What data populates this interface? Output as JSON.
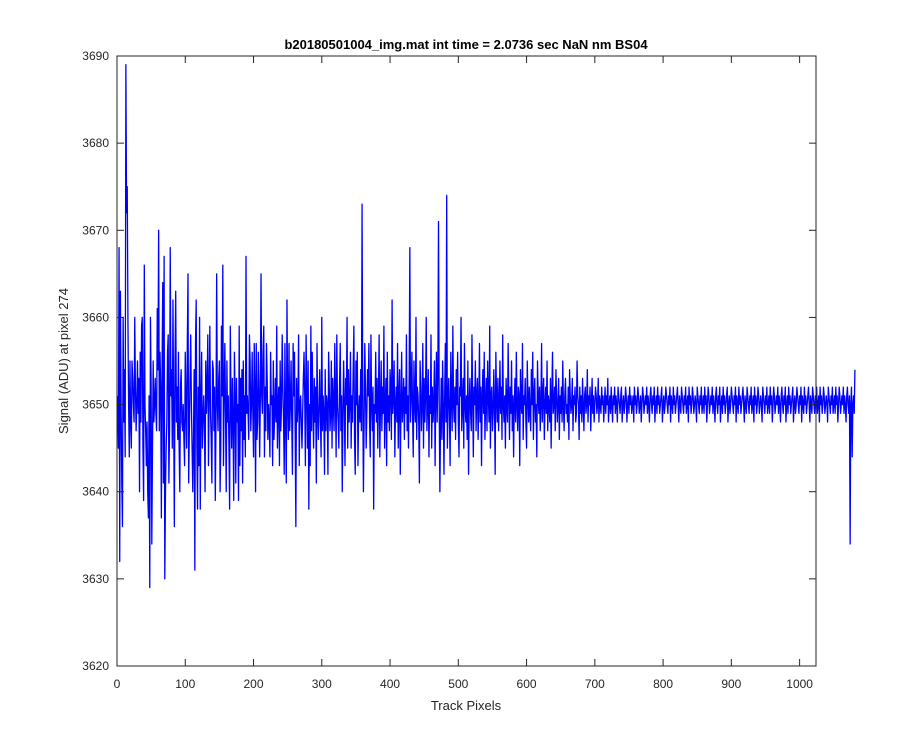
{
  "chart_data": {
    "type": "line",
    "title": "b20180501004_img.mat int time = 2.0736 sec  NaN nm BS04",
    "xlabel": "Track Pixels",
    "ylabel": "Signal (ADU) at pixel 274",
    "xlim": [
      0,
      1024
    ],
    "ylim": [
      3620,
      3690
    ],
    "x_ticks": [
      0,
      100,
      200,
      300,
      400,
      500,
      600,
      700,
      800,
      900,
      1000
    ],
    "y_ticks": [
      3620,
      3630,
      3640,
      3650,
      3660,
      3670,
      3680,
      3690
    ],
    "grid": false,
    "legend": "none",
    "series": [
      {
        "color": "#0000ff",
        "x_start": 1,
        "x_step": 1,
        "values": [
          3651,
          3645,
          3668,
          3632,
          3663,
          3650,
          3641,
          3636,
          3660,
          3648,
          3654,
          3644,
          3689,
          3672,
          3675,
          3660,
          3650,
          3644,
          3655,
          3648,
          3645,
          3655,
          3653,
          3650,
          3648,
          3660,
          3652,
          3647,
          3650,
          3655,
          3649,
          3653,
          3640,
          3656,
          3648,
          3659,
          3660,
          3645,
          3639,
          3666,
          3650,
          3647,
          3643,
          3648,
          3640,
          3637,
          3651,
          3629,
          3660,
          3652,
          3634,
          3645,
          3655,
          3648,
          3650,
          3653,
          3649,
          3647,
          3661,
          3654,
          3670,
          3647,
          3656,
          3652,
          3637,
          3654,
          3664,
          3641,
          3667,
          3630,
          3640,
          3645,
          3648,
          3656,
          3658,
          3641,
          3647,
          3668,
          3651,
          3654,
          3645,
          3662,
          3649,
          3636,
          3655,
          3663,
          3648,
          3652,
          3646,
          3656,
          3645,
          3640,
          3652,
          3654,
          3648,
          3647,
          3650,
          3646,
          3643,
          3656,
          3650,
          3645,
          3657,
          3665,
          3641,
          3647,
          3653,
          3658,
          3650,
          3645,
          3640,
          3646,
          3654,
          3631,
          3657,
          3662,
          3645,
          3638,
          3652,
          3643,
          3660,
          3638,
          3650,
          3656,
          3645,
          3648,
          3651,
          3648,
          3640,
          3655,
          3649,
          3652,
          3658,
          3643,
          3651,
          3659,
          3649,
          3646,
          3641,
          3655,
          3654,
          3647,
          3652,
          3639,
          3648,
          3665,
          3650,
          3647,
          3653,
          3655,
          3640,
          3645,
          3659,
          3651,
          3666,
          3643,
          3651,
          3657,
          3649,
          3640,
          3655,
          3648,
          3651,
          3645,
          3638,
          3659,
          3650,
          3645,
          3653,
          3648,
          3639,
          3656,
          3651,
          3641,
          3653,
          3648,
          3650,
          3639,
          3659,
          3643,
          3653,
          3647,
          3654,
          3641,
          3655,
          3646,
          3651,
          3644,
          3667,
          3649,
          3651,
          3649,
          3646,
          3658,
          3655,
          3647,
          3650,
          3656,
          3649,
          3644,
          3657,
          3652,
          3640,
          3657,
          3646,
          3648,
          3656,
          3652,
          3644,
          3651,
          3665,
          3651,
          3649,
          3656,
          3659,
          3644,
          3652,
          3647,
          3657,
          3653,
          3646,
          3650,
          3648,
          3644,
          3656,
          3650,
          3651,
          3643,
          3655,
          3646,
          3649,
          3653,
          3648,
          3659,
          3645,
          3650,
          3652,
          3643,
          3655,
          3647,
          3650,
          3658,
          3652,
          3648,
          3642,
          3657,
          3648,
          3641,
          3662,
          3650,
          3646,
          3657,
          3647,
          3650,
          3655,
          3648,
          3642,
          3657,
          3651,
          3656,
          3647,
          3636,
          3653,
          3648,
          3650,
          3658,
          3643,
          3650,
          3651,
          3648,
          3645,
          3649,
          3653,
          3656,
          3651,
          3643,
          3658,
          3652,
          3645,
          3655,
          3638,
          3650,
          3643,
          3659,
          3647,
          3656,
          3650,
          3645,
          3653,
          3648,
          3652,
          3641,
          3657,
          3649,
          3646,
          3650,
          3654,
          3648,
          3644,
          3660,
          3647,
          3651,
          3649,
          3642,
          3654,
          3647,
          3651,
          3650,
          3642,
          3656,
          3652,
          3647,
          3649,
          3655,
          3645,
          3653,
          3650,
          3647,
          3657,
          3651,
          3644,
          3658,
          3650,
          3648,
          3645,
          3652,
          3657,
          3647,
          3651,
          3640,
          3649,
          3655,
          3650,
          3643,
          3653,
          3650,
          3660,
          3645,
          3654,
          3648,
          3650,
          3656,
          3645,
          3651,
          3648,
          3654,
          3659,
          3646,
          3642,
          3655,
          3650,
          3656,
          3643,
          3649,
          3651,
          3648,
          3654,
          3647,
          3673,
          3651,
          3640,
          3648,
          3657,
          3652,
          3645,
          3649,
          3654,
          3651,
          3657,
          3648,
          3644,
          3658,
          3650,
          3647,
          3652,
          3638,
          3650,
          3649,
          3656,
          3648,
          3653,
          3645,
          3651,
          3658,
          3644,
          3650,
          3655,
          3647,
          3652,
          3649,
          3659,
          3645,
          3650,
          3653,
          3643,
          3656,
          3648,
          3651,
          3647,
          3654,
          3652,
          3646,
          3662,
          3649,
          3651,
          3655,
          3644,
          3650,
          3652,
          3648,
          3657,
          3645,
          3651,
          3654,
          3642,
          3650,
          3656,
          3648,
          3650,
          3653,
          3646,
          3652,
          3649,
          3658,
          3647,
          3651,
          3645,
          3653,
          3668,
          3648,
          3651,
          3656,
          3649,
          3644,
          3655,
          3650,
          3648,
          3660,
          3646,
          3652,
          3651,
          3648,
          3641,
          3655,
          3652,
          3647,
          3650,
          3657,
          3645,
          3653,
          3648,
          3651,
          3660,
          3647,
          3650,
          3654,
          3644,
          3651,
          3649,
          3658,
          3645,
          3652,
          3648,
          3650,
          3655,
          3643,
          3651,
          3656,
          3648,
          3653,
          3671,
          3650,
          3640,
          3648,
          3653,
          3646,
          3655,
          3650,
          3642,
          3651,
          3657,
          3648,
          3674,
          3645,
          3650,
          3653,
          3649,
          3643,
          3656,
          3651,
          3647,
          3659,
          3650,
          3648,
          3652,
          3646,
          3654,
          3650,
          3656,
          3648,
          3644,
          3652,
          3651,
          3660,
          3647,
          3650,
          3653,
          3645,
          3657,
          3650,
          3648,
          3651,
          3646,
          3655,
          3642,
          3650,
          3653,
          3649,
          3647,
          3658,
          3651,
          3644,
          3652,
          3650,
          3655,
          3647,
          3651,
          3653,
          3646,
          3650,
          3657,
          3648,
          3652,
          3643,
          3651,
          3654,
          3649,
          3656,
          3646,
          3650,
          3653,
          3647,
          3655,
          3651,
          3648,
          3659,
          3645,
          3651,
          3652,
          3647,
          3649,
          3654,
          3650,
          3642,
          3656,
          3651,
          3648,
          3653,
          3647,
          3650,
          3655,
          3649,
          3652,
          3646,
          3658,
          3650,
          3648,
          3651,
          3645,
          3653,
          3650,
          3648,
          3657,
          3651,
          3646,
          3652,
          3649,
          3655,
          3647,
          3651,
          3644,
          3650,
          3653,
          3648,
          3656,
          3650,
          3647,
          3652,
          3651,
          3643,
          3654,
          3650,
          3649,
          3657,
          3646,
          3651,
          3650,
          3653,
          3648,
          3645,
          3655,
          3651,
          3648,
          3652,
          3649,
          3647,
          3654,
          3650,
          3656,
          3646,
          3651,
          3653,
          3648,
          3650,
          3644,
          3655,
          3651,
          3649,
          3652,
          3647,
          3650,
          3657,
          3648,
          3651,
          3653,
          3646,
          3650,
          3652,
          3649,
          3655,
          3647,
          3651,
          3650,
          3648,
          3653,
          3645,
          3651,
          3656,
          3649,
          3650,
          3652,
          3647,
          3654,
          3651,
          3648,
          3650,
          3653,
          3646,
          3651,
          3649,
          3652,
          3648,
          3655,
          3650,
          3647,
          3651,
          3653,
          3649,
          3650,
          3648,
          3652,
          3646,
          3654,
          3651,
          3649,
          3650,
          3653,
          3647,
          3651,
          3650,
          3652,
          3648,
          3649,
          3655,
          3651,
          3650,
          3646,
          3652,
          3649,
          3651,
          3648,
          3653,
          3650,
          3647,
          3651,
          3652,
          3649,
          3650,
          3654,
          3648,
          3651,
          3650,
          3652,
          3647,
          3650,
          3653,
          3649,
          3651,
          3648,
          3650,
          3652,
          3651,
          3649,
          3650,
          3653,
          3648,
          3651,
          3650,
          3649,
          3652,
          3650,
          3651,
          3648,
          3650,
          3652,
          3649,
          3651,
          3650,
          3653,
          3648,
          3650,
          3651,
          3649,
          3652,
          3650,
          3648,
          3651,
          3650,
          3652,
          3649,
          3651,
          3650,
          3648,
          3652,
          3651,
          3650,
          3649,
          3651,
          3652,
          3648,
          3650,
          3651,
          3649,
          3650,
          3652,
          3651,
          3648,
          3650,
          3651,
          3649,
          3652,
          3650,
          3651,
          3649,
          3650,
          3651,
          3648,
          3652,
          3650,
          3651,
          3649,
          3650,
          3652,
          3651,
          3649,
          3650,
          3651,
          3648,
          3650,
          3652,
          3651,
          3649,
          3650,
          3651,
          3650,
          3652,
          3649,
          3651,
          3650,
          3648,
          3651,
          3652,
          3650,
          3649,
          3651,
          3650,
          3652,
          3648,
          3650,
          3651,
          3649,
          3652,
          3650,
          3651,
          3649,
          3650,
          3651,
          3652,
          3648,
          3650,
          3651,
          3649,
          3650,
          3652,
          3651,
          3650,
          3649,
          3651,
          3650,
          3652,
          3648,
          3651,
          3650,
          3649,
          3652,
          3650,
          3651,
          3649,
          3650,
          3651,
          3652,
          3650,
          3648,
          3651,
          3650,
          3649,
          3652,
          3651,
          3650,
          3649,
          3651,
          3650,
          3652,
          3649,
          3650,
          3651,
          3648,
          3652,
          3650,
          3651,
          3649,
          3650,
          3652,
          3651,
          3649,
          3650,
          3651,
          3650,
          3648,
          3652,
          3651,
          3650,
          3649,
          3651,
          3650,
          3652,
          3649,
          3650,
          3651,
          3649,
          3652,
          3650,
          3651,
          3648,
          3650,
          3652,
          3651,
          3649,
          3650,
          3651,
          3650,
          3652,
          3649,
          3651,
          3650,
          3648,
          3651,
          3652,
          3650,
          3649,
          3651,
          3650,
          3652,
          3648,
          3650,
          3651,
          3649,
          3652,
          3650,
          3651,
          3649,
          3650,
          3651,
          3652,
          3648,
          3650,
          3651,
          3649,
          3650,
          3652,
          3651,
          3650,
          3649,
          3651,
          3650,
          3652,
          3648,
          3651,
          3650,
          3649,
          3652,
          3650,
          3651,
          3649,
          3650,
          3651,
          3652,
          3650,
          3648,
          3651,
          3650,
          3649,
          3652,
          3651,
          3650,
          3649,
          3651,
          3650,
          3652,
          3649,
          3650,
          3651,
          3648,
          3652,
          3650,
          3651,
          3649,
          3650,
          3652,
          3651,
          3649,
          3650,
          3651,
          3650,
          3648,
          3652,
          3651,
          3650,
          3649,
          3651,
          3650,
          3652,
          3649,
          3650,
          3651,
          3649,
          3652,
          3650,
          3651,
          3648,
          3650,
          3652,
          3651,
          3649,
          3650,
          3651,
          3650,
          3652,
          3649,
          3651,
          3650,
          3648,
          3651,
          3652,
          3650,
          3649,
          3651,
          3650,
          3652,
          3648,
          3650,
          3651,
          3649,
          3652,
          3650,
          3651,
          3649,
          3650,
          3651,
          3652,
          3648,
          3650,
          3651,
          3649,
          3650,
          3652,
          3651,
          3650,
          3649,
          3651,
          3650,
          3652,
          3648,
          3651,
          3650,
          3649,
          3652,
          3650,
          3651,
          3649,
          3650,
          3651,
          3652,
          3650,
          3648,
          3651,
          3650,
          3649,
          3652,
          3651,
          3650,
          3649,
          3651,
          3650,
          3652,
          3649,
          3650,
          3651,
          3648,
          3652,
          3650,
          3651,
          3649,
          3650,
          3652,
          3651,
          3649,
          3650,
          3651,
          3650,
          3648,
          3652,
          3651,
          3650,
          3649,
          3651,
          3650,
          3652,
          3649,
          3650,
          3651,
          3649,
          3652,
          3650,
          3651,
          3648,
          3650,
          3652,
          3651,
          3649,
          3650,
          3651,
          3650,
          3652,
          3649,
          3651,
          3650,
          3648,
          3651,
          3652,
          3650,
          3649,
          3651,
          3634,
          3650,
          3652,
          3644,
          3650,
          3651,
          3649,
          3654
        ]
      }
    ]
  }
}
